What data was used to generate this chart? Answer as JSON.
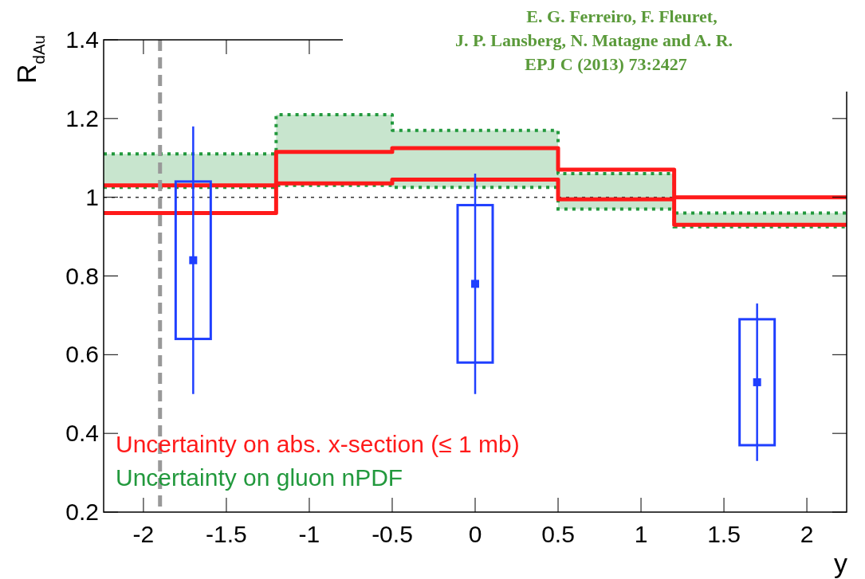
{
  "chart_data": {
    "type": "scatter",
    "ylabel": "R$_{dAu}$",
    "xlabel": "y",
    "annotations": [
      "E. G. Ferreiro, F. Fleuret,\nJ. P. Lansberg, N. Matagne and A. R.\nEPJ C (2013) 73:2427"
    ],
    "xlim": [
      -2.24,
      2.24
    ],
    "ylim": [
      0.2,
      1.4
    ],
    "xticks": [
      -2,
      -1.5,
      -1,
      -0.5,
      0,
      0.5,
      1,
      1.5,
      2
    ],
    "yticks": [
      0.2,
      0.4,
      0.6,
      0.8,
      1,
      1.2,
      1.4
    ],
    "ref_lines": [
      {
        "axis": "y",
        "value": 1,
        "label": null,
        "color": "#333333",
        "line_style": "dotted"
      },
      {
        "axis": "x",
        "value": -1.9,
        "label": null,
        "color": "#999999",
        "line_style": "dashed"
      }
    ],
    "legend": "bottom left",
    "series": [
      {
        "type": "line",
        "name": "Uncertainty on abs. x-section (≤ 1 mb)",
        "color": "#ff1a1a",
        "x": [
          -2.24,
          -1.2,
          -1.2,
          -0.5,
          -0.5,
          0.5,
          0.5,
          1.2,
          1.2,
          2.24
        ],
        "values": [
          1.03,
          1.03,
          1.115,
          1.115,
          1.125,
          1.125,
          1.07,
          1.07,
          1.0,
          1.0
        ],
        "line_style": "solid"
      },
      {
        "type": "line",
        "color": "#ff1a1a",
        "x": [
          -2.24,
          -1.2,
          -1.2,
          -0.5,
          -0.5,
          0.5,
          0.5,
          1.2,
          1.2,
          2.24
        ],
        "values": [
          0.96,
          0.96,
          1.035,
          1.035,
          1.045,
          1.045,
          0.995,
          0.995,
          0.93,
          0.93
        ],
        "line_style": "solid"
      },
      {
        "type": "line",
        "name": "Uncertainty on gluon nPDF",
        "color": "#22993d",
        "x": [
          -2.24,
          -1.2,
          -1.2,
          -0.5,
          -0.5,
          0.5,
          0.5,
          1.2,
          1.2,
          2.24
        ],
        "values": [
          1.025,
          1.025,
          1.03,
          1.03,
          1.025,
          1.025,
          0.97,
          0.97,
          0.925,
          0.925
        ],
        "lower": [
          1.025,
          1.025,
          1.03,
          1.03,
          1.025,
          1.025,
          0.97,
          0.97,
          0.925,
          0.925
        ],
        "upper": [
          1.11,
          1.11,
          1.21,
          1.21,
          1.17,
          1.17,
          1.06,
          1.06,
          0.96,
          0.96
        ],
        "line_style": "dotted"
      },
      {
        "type": "line",
        "color": "#22993d",
        "x": [
          -2.24,
          -1.2,
          -1.2,
          -0.5,
          -0.5,
          0.5,
          0.5,
          1.2,
          1.2,
          2.24
        ],
        "values": [
          1.11,
          1.11,
          1.21,
          1.21,
          1.17,
          1.17,
          1.06,
          1.06,
          0.96,
          0.96
        ],
        "line_style": "dotted"
      },
      {
        "type": "bar",
        "color": "#1f3fff",
        "x": [
          -1.7,
          0,
          1.7
        ],
        "base": [
          0.64,
          0.58,
          0.37
        ],
        "values": [
          0.4,
          0.4,
          0.32
        ]
      },
      {
        "color": "#1f3fff",
        "x": [
          -1.7,
          0,
          1.7
        ],
        "values": [
          0.84,
          0.78,
          0.53
        ],
        "errors": [
          [
            0.5,
            1.18
          ],
          [
            0.5,
            1.06
          ],
          [
            0.33,
            0.73
          ]
        ],
        "marker": "square"
      }
    ]
  }
}
